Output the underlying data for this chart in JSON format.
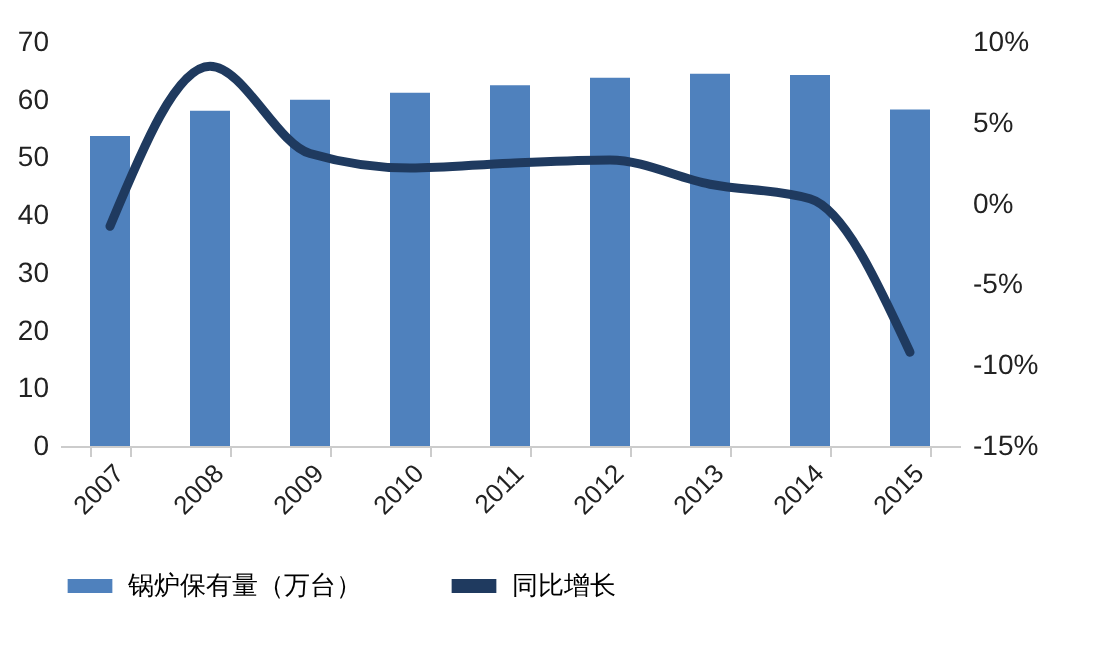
{
  "chart_data": {
    "type": "bar",
    "categories": [
      "2007",
      "2008",
      "2009",
      "2010",
      "2011",
      "2012",
      "2013",
      "2014",
      "2015"
    ],
    "series": [
      {
        "name": "锅炉保有量（万台）",
        "color": "#4f81bd",
        "values": [
          53.7,
          58.1,
          60.0,
          61.2,
          62.5,
          63.8,
          64.5,
          64.3,
          58.3
        ]
      },
      {
        "name": "同比增长",
        "type": "line",
        "axis": "y2",
        "color": "#1f3a5f",
        "values": [
          -1.4,
          8.5,
          3.1,
          2.2,
          2.5,
          2.7,
          1.2,
          0.3,
          -9.2
        ]
      }
    ],
    "ylim": [
      0,
      70
    ],
    "yticks": [
      0,
      10,
      20,
      30,
      40,
      50,
      60,
      70
    ],
    "y2lim": [
      -15,
      10
    ],
    "y2ticks": [
      {
        "value": -15,
        "label": "-15%"
      },
      {
        "value": -10,
        "label": "-10%"
      },
      {
        "value": -5,
        "label": "-5%"
      },
      {
        "value": 0,
        "label": "0%"
      },
      {
        "value": 5,
        "label": "5%"
      },
      {
        "value": 10,
        "label": "10%"
      }
    ],
    "grid": false,
    "legend": "bottom"
  }
}
